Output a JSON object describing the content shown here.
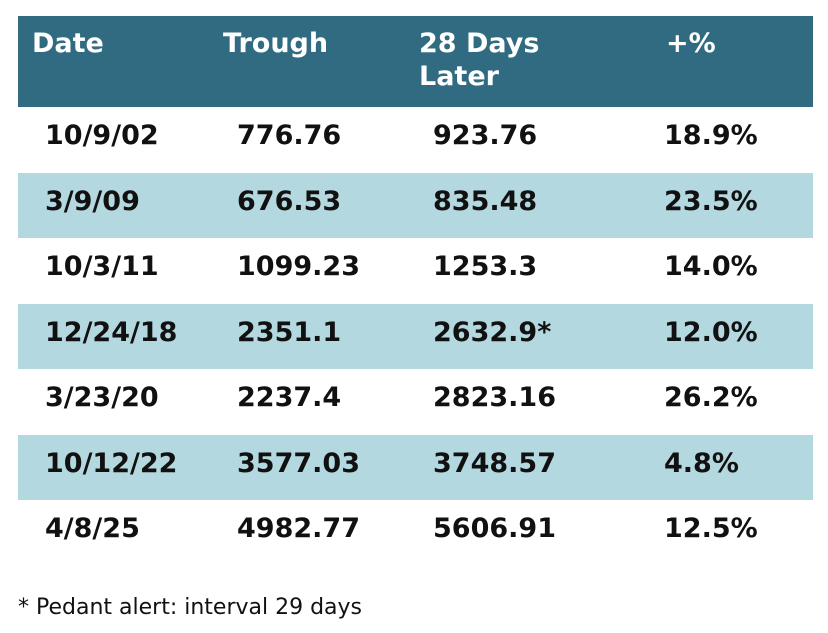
{
  "chart_data": {
    "type": "table",
    "columns": [
      "Date",
      "Trough",
      "28 Days\nLater",
      "+%"
    ],
    "rows": [
      [
        "10/9/02",
        "776.76",
        "923.76",
        "18.9%"
      ],
      [
        "3/9/09",
        "676.53",
        "835.48",
        "23.5%"
      ],
      [
        "10/3/11",
        "1099.23",
        "1253.3",
        "14.0%"
      ],
      [
        "12/24/18",
        "2351.1",
        "2632.9*",
        "12.0%"
      ],
      [
        "3/23/20",
        "2237.4",
        "2823.16",
        "26.2%"
      ],
      [
        "10/12/22",
        "3577.03",
        "3748.57",
        "4.8%"
      ],
      [
        "4/8/25",
        "4982.77",
        "5606.91",
        "12.5%"
      ]
    ],
    "footnote": "* Pedant alert: interval 29 days"
  },
  "colors": {
    "header_bg": "#316b81",
    "header_text": "#ffffff",
    "alt_row_bg": "#b4d8df",
    "row_bg": "#ffffff",
    "text": "#111111"
  }
}
